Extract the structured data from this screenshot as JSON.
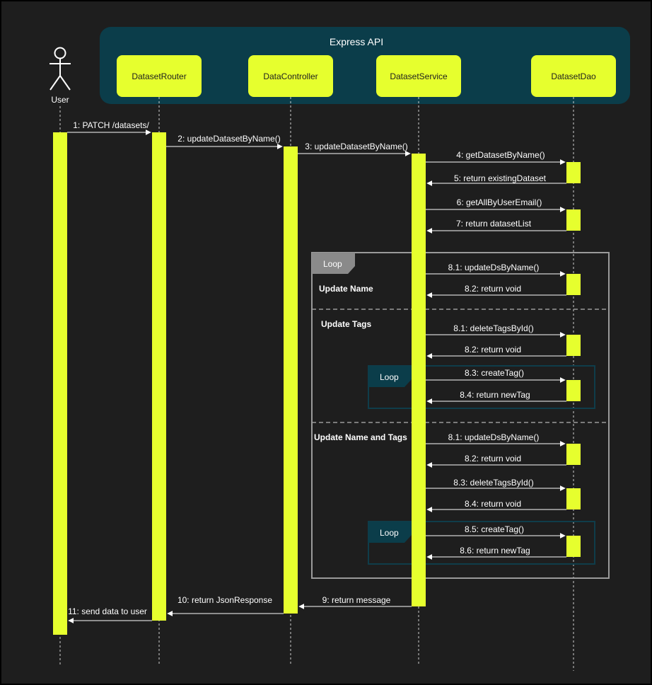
{
  "colors": {
    "background": "#1e1e1e",
    "group_fill": "#0b3d4a",
    "participant_fill": "#e6ff2e",
    "activation_fill": "#e6ff2e",
    "frame_outer": "#9a9a9a",
    "frame_inner": "#0f3d4a",
    "text": "#ffffff",
    "participant_text": "#1e1e1e"
  },
  "group": {
    "title": "Express API"
  },
  "actor": {
    "label": "User"
  },
  "participants": [
    "DatasetRouter",
    "DataController",
    "DatasetService",
    "DatasetDao"
  ],
  "messages": [
    "1: PATCH /datasets/",
    "2: updateDatasetByName()",
    "3: updateDatasetByName()",
    "4: getDatasetByName()",
    "5: return existingDataset",
    "6: getAllByUserEmail()",
    "7: return datasetList",
    "8.1: updateDsByName()",
    "8.2: return void",
    "8.1: deleteTagsById()",
    "8.2: return void",
    "8.3: createTag()",
    "8.4: return newTag",
    "8.1: updateDsByName()",
    "8.2: return void",
    "8.3: deleteTagsById()",
    "8.4: return void",
    "8.5: createTag()",
    "8.6: return newTag",
    "9: return message",
    "10: return JsonResponse",
    "11: send data to user"
  ],
  "frames": {
    "outer": "Loop",
    "inner1": "Loop",
    "inner2": "Loop",
    "sections": [
      "Update Name",
      "Update Tags",
      "Update Name and Tags"
    ]
  }
}
